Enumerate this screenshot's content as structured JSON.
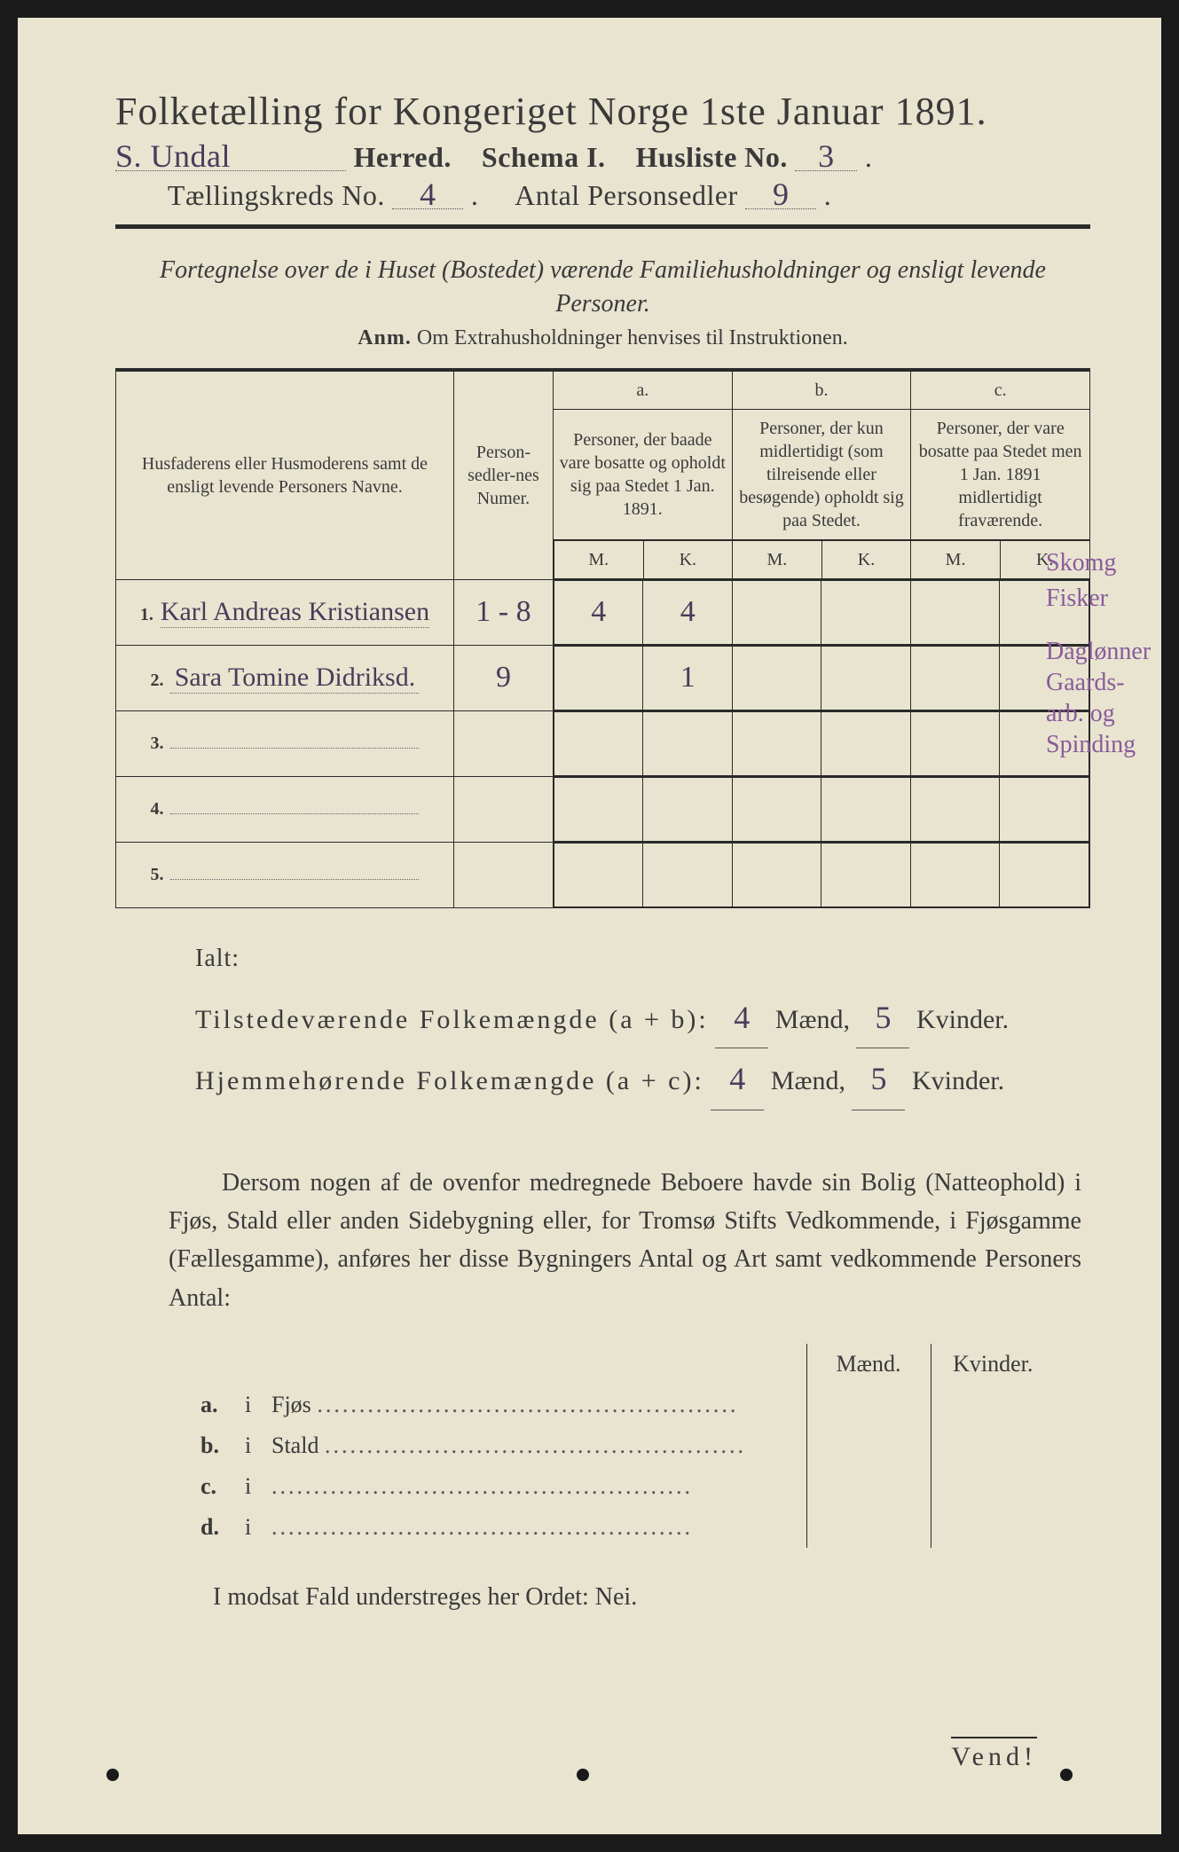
{
  "title": "Folketælling for Kongeriget Norge 1ste Januar 1891.",
  "herred_hw": "S. Undal",
  "herred_label": "Herred.",
  "schema_label": "Schema I.",
  "husliste_label": "Husliste No.",
  "husliste_hw": "3",
  "kreds_label": "Tællingskreds No.",
  "kreds_hw": "4",
  "personsedler_label": "Antal Personsedler",
  "personsedler_hw": "9",
  "subtitle": "Fortegnelse over de i Huset (Bostedet) værende Familiehusholdninger og ensligt levende Personer.",
  "anm_lead": "Anm.",
  "anm_text": "Om Extrahusholdninger henvises til Instruktionen.",
  "headers": {
    "names": "Husfaderens eller Husmoderens samt de ensligt levende Personers Navne.",
    "num": "Person-sedler-nes Numer.",
    "a_top": "a.",
    "a": "Personer, der baade vare bosatte og opholdt sig paa Stedet 1 Jan. 1891.",
    "b_top": "b.",
    "b": "Personer, der kun midlertidigt (som tilreisende eller besøgende) opholdt sig paa Stedet.",
    "c_top": "c.",
    "c": "Personer, der vare bosatte paa Stedet men 1 Jan. 1891 midlertidigt fraværende.",
    "m": "M.",
    "k": "K."
  },
  "rows": [
    {
      "n": "1.",
      "name": "Karl Andreas Kristiansen",
      "num": "1 - 8",
      "am": "4",
      "ak": "4",
      "bm": "",
      "bk": "",
      "cm": "",
      "ck": ""
    },
    {
      "n": "2.",
      "name": "Sara Tomine Didriksd.",
      "num": "9",
      "am": "",
      "ak": "1",
      "bm": "",
      "bk": "",
      "cm": "",
      "ck": ""
    },
    {
      "n": "3.",
      "name": "",
      "num": "",
      "am": "",
      "ak": "",
      "bm": "",
      "bk": "",
      "cm": "",
      "ck": ""
    },
    {
      "n": "4.",
      "name": "",
      "num": "",
      "am": "",
      "ak": "",
      "bm": "",
      "bk": "",
      "cm": "",
      "ck": ""
    },
    {
      "n": "5.",
      "name": "",
      "num": "",
      "am": "",
      "ak": "",
      "bm": "",
      "bk": "",
      "cm": "",
      "ck": ""
    }
  ],
  "marginal": [
    "Skomg",
    "Fisker",
    "Daglønner",
    "Gaards-",
    "arb. og",
    "Spinding"
  ],
  "ialt": {
    "lead": "Ialt:",
    "line1a": "Tilstedeværende Folkemængde (a + b):",
    "line1m": "4",
    "line1mw": "Mænd,",
    "line1k": "5",
    "line1kw": "Kvinder.",
    "line2a": "Hjemmehørende Folkemængde (a + c):",
    "line2m": "4",
    "line2mw": "Mænd,",
    "line2k": "5",
    "line2kw": "Kvinder."
  },
  "para": "Dersom nogen af de ovenfor medregnede Beboere havde sin Bolig (Natteophold) i Fjøs, Stald eller anden Sidebygning eller, for Tromsø Stifts Vedkommende, i Fjøsgamme (Fællesgamme), anføres her disse Bygningers Antal og Art samt vedkommende Personers Antal:",
  "bld_head_m": "Mænd.",
  "bld_head_k": "Kvinder.",
  "bld_rows": [
    {
      "l": "a.",
      "i": "i",
      "name": "Fjøs"
    },
    {
      "l": "b.",
      "i": "i",
      "name": "Stald"
    },
    {
      "l": "c.",
      "i": "i",
      "name": ""
    },
    {
      "l": "d.",
      "i": "i",
      "name": ""
    }
  ],
  "nei": "I modsat Fald understreges her Ordet: Nei.",
  "vend": "Vend!",
  "colors": {
    "paper": "#e8e4d0",
    "ink": "#3a3a3a",
    "handwriting": "#4a3a5a",
    "marginal": "#8a5a9a"
  }
}
